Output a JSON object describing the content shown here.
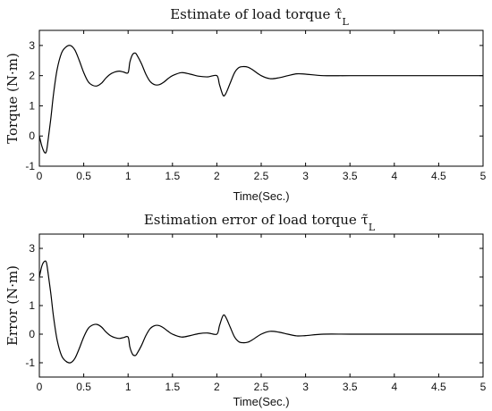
{
  "chart_data": [
    {
      "type": "line",
      "title": "Estimate of load torque τ̂",
      "title_subscript": "L",
      "xlabel": "Time(Sec.)",
      "ylabel": "Torque (N·m)",
      "xlim": [
        0,
        5
      ],
      "ylim": [
        -1,
        3.5
      ],
      "xticks": [
        0,
        0.5,
        1,
        1.5,
        2,
        2.5,
        3,
        3.5,
        4,
        4.5,
        5
      ],
      "xtick_labels": [
        "0",
        "0.5",
        "1",
        "1.5",
        "2",
        "2.5",
        "3",
        "3.5",
        "4",
        "4.5",
        "5"
      ],
      "yticks": [
        -1,
        0,
        1,
        2,
        3
      ],
      "ytick_labels": [
        "-1",
        "0",
        "1",
        "2",
        "3"
      ],
      "grid": false,
      "series": [
        {
          "x": [
            0,
            0.03,
            0.06,
            0.08,
            0.1,
            0.13,
            0.16,
            0.2,
            0.25,
            0.3,
            0.35,
            0.4,
            0.45,
            0.5,
            0.55,
            0.6,
            0.65,
            0.7,
            0.75,
            0.8,
            0.85,
            0.9,
            0.95,
            1.0,
            1.02,
            1.05,
            1.08,
            1.1,
            1.15,
            1.2,
            1.25,
            1.3,
            1.35,
            1.4,
            1.45,
            1.5,
            1.6,
            1.7,
            1.8,
            1.9,
            2.0,
            2.03,
            2.07,
            2.1,
            2.15,
            2.2,
            2.25,
            2.3,
            2.35,
            2.4,
            2.5,
            2.6,
            2.7,
            2.8,
            2.9,
            3.0,
            3.2,
            3.5,
            4.0,
            4.5,
            5.0
          ],
          "y": [
            0.0,
            -0.35,
            -0.55,
            -0.5,
            -0.1,
            0.6,
            1.4,
            2.2,
            2.75,
            2.95,
            3.0,
            2.85,
            2.5,
            2.1,
            1.8,
            1.68,
            1.66,
            1.75,
            1.92,
            2.05,
            2.12,
            2.15,
            2.12,
            2.1,
            2.45,
            2.7,
            2.75,
            2.68,
            2.4,
            2.05,
            1.8,
            1.7,
            1.7,
            1.78,
            1.9,
            2.0,
            2.1,
            2.05,
            1.98,
            1.96,
            2.0,
            1.7,
            1.35,
            1.4,
            1.75,
            2.1,
            2.27,
            2.3,
            2.28,
            2.2,
            2.0,
            1.9,
            1.93,
            2.0,
            2.06,
            2.05,
            2.0,
            2.0,
            2.0,
            2.0,
            2.0
          ]
        }
      ]
    },
    {
      "type": "line",
      "title": "Estimation error of load torque τ̃",
      "title_subscript": "L",
      "xlabel": "Time(Sec.)",
      "ylabel": "Error (N·m)",
      "xlim": [
        0,
        5
      ],
      "ylim": [
        -1.5,
        3.5
      ],
      "xticks": [
        0,
        0.5,
        1,
        1.5,
        2,
        2.5,
        3,
        3.5,
        4,
        4.5,
        5
      ],
      "xtick_labels": [
        "0",
        "0.5",
        "1",
        "1.5",
        "2",
        "2.5",
        "3",
        "3.5",
        "4",
        "4.5",
        "5"
      ],
      "yticks": [
        -1,
        0,
        1,
        2,
        3
      ],
      "ytick_labels": [
        "-1",
        "0",
        "1",
        "2",
        "3"
      ],
      "grid": false,
      "series": [
        {
          "x": [
            0,
            0.03,
            0.06,
            0.08,
            0.1,
            0.13,
            0.16,
            0.2,
            0.25,
            0.3,
            0.35,
            0.4,
            0.45,
            0.5,
            0.55,
            0.6,
            0.65,
            0.7,
            0.75,
            0.8,
            0.85,
            0.9,
            0.95,
            1.0,
            1.02,
            1.05,
            1.08,
            1.1,
            1.15,
            1.2,
            1.25,
            1.3,
            1.35,
            1.4,
            1.45,
            1.5,
            1.6,
            1.7,
            1.8,
            1.9,
            2.0,
            2.03,
            2.07,
            2.1,
            2.15,
            2.2,
            2.25,
            2.3,
            2.35,
            2.4,
            2.5,
            2.6,
            2.7,
            2.8,
            2.9,
            3.0,
            3.2,
            3.5,
            4.0,
            4.5,
            5.0
          ],
          "y": [
            2.0,
            2.4,
            2.55,
            2.5,
            2.1,
            1.4,
            0.6,
            -0.2,
            -0.75,
            -0.95,
            -1.0,
            -0.85,
            -0.5,
            -0.1,
            0.2,
            0.32,
            0.34,
            0.25,
            0.08,
            -0.05,
            -0.12,
            -0.15,
            -0.12,
            -0.1,
            -0.45,
            -0.7,
            -0.75,
            -0.68,
            -0.4,
            -0.05,
            0.2,
            0.3,
            0.3,
            0.22,
            0.1,
            0.0,
            -0.1,
            -0.05,
            0.02,
            0.04,
            0.0,
            0.3,
            0.65,
            0.6,
            0.25,
            -0.1,
            -0.27,
            -0.3,
            -0.28,
            -0.2,
            0.0,
            0.1,
            0.07,
            0.0,
            -0.06,
            -0.05,
            0.0,
            0.0,
            0.0,
            0.0,
            0.0
          ]
        }
      ]
    }
  ]
}
